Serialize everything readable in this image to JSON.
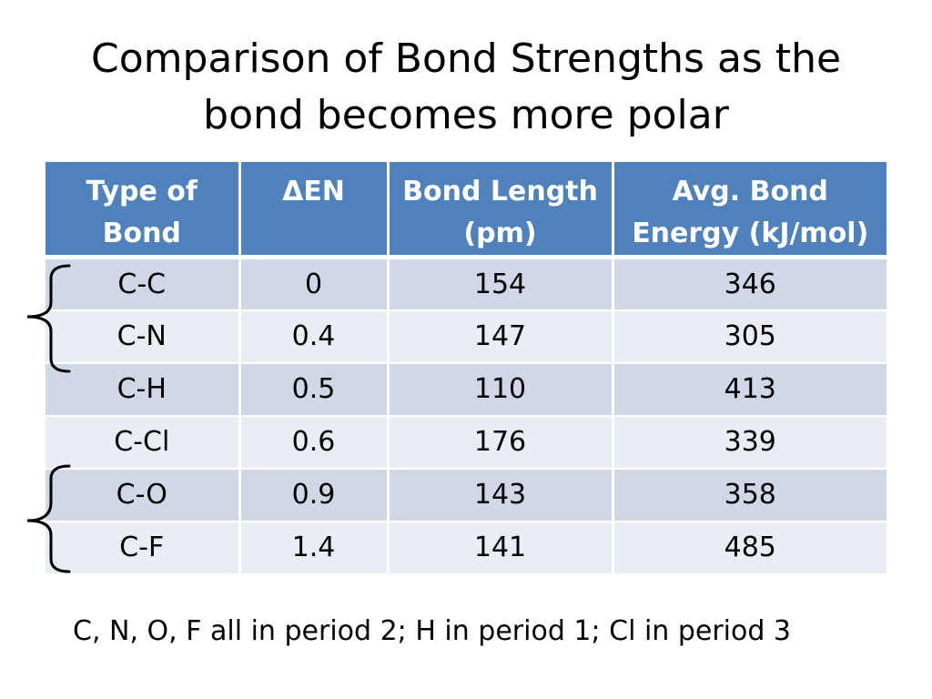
{
  "title": {
    "line1": "Comparison of Bond Strengths as the",
    "line2": "bond becomes more polar"
  },
  "table": {
    "headers": [
      {
        "line1": "Type of",
        "line2": "Bond"
      },
      {
        "symbol": "Δ",
        "line1": "EN",
        "line2": ""
      },
      {
        "line1": "Bond Length",
        "line2": "(pm)"
      },
      {
        "line1": "Avg. Bond",
        "line2": "Energy (kJ/mol)"
      }
    ],
    "rows": [
      [
        "C-C",
        "0",
        "154",
        "346"
      ],
      [
        "C-N",
        "0.4",
        "147",
        "305"
      ],
      [
        "C-H",
        "0.5",
        "110",
        "413"
      ],
      [
        "C-Cl",
        "0.6",
        "176",
        "339"
      ],
      [
        "C-O",
        "0.9",
        "143",
        "358"
      ],
      [
        "C-F",
        "1.4",
        "141",
        "485"
      ]
    ]
  },
  "footnote": "C, N, O, F all in period 2; H in period 1; Cl in period 3",
  "colors": {
    "header_bg": "#4f81bd",
    "row_odd_bg": "#d0d8e8",
    "row_even_bg": "#e9edf4"
  }
}
